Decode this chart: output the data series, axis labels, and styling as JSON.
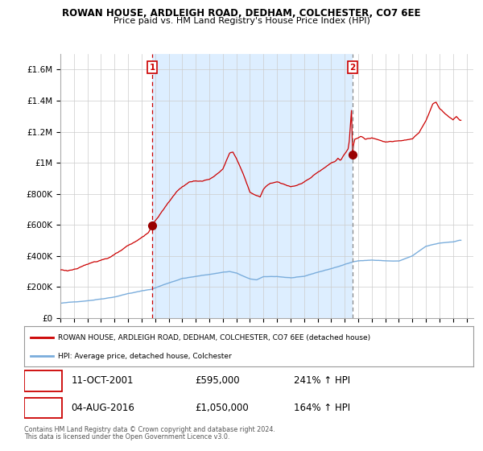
{
  "title1": "ROWAN HOUSE, ARDLEIGH ROAD, DEDHAM, COLCHESTER, CO7 6EE",
  "title2": "Price paid vs. HM Land Registry's House Price Index (HPI)",
  "ylim": [
    0,
    1700000
  ],
  "yticks": [
    0,
    200000,
    400000,
    600000,
    800000,
    1000000,
    1200000,
    1400000,
    1600000
  ],
  "ytick_labels": [
    "£0",
    "£200K",
    "£400K",
    "£600K",
    "£800K",
    "£1M",
    "£1.2M",
    "£1.4M",
    "£1.6M"
  ],
  "xlim_start": 1995.0,
  "xlim_end": 2025.5,
  "sale1_x": 2001.78,
  "sale1_y": 595000,
  "sale1_label": "1",
  "sale1_date": "11-OCT-2001",
  "sale1_price": "£595,000",
  "sale1_hpi": "241% ↑ HPI",
  "sale2_x": 2016.58,
  "sale2_y": 1050000,
  "sale2_label": "2",
  "sale2_date": "04-AUG-2016",
  "sale2_price": "£1,050,000",
  "sale2_hpi": "164% ↑ HPI",
  "line_color_house": "#cc0000",
  "line_color_hpi": "#7aaddc",
  "vline1_color": "#cc0000",
  "vline2_color": "#888888",
  "marker_color": "#990000",
  "shade_color": "#ddeeff",
  "legend_label_house": "ROWAN HOUSE, ARDLEIGH ROAD, DEDHAM, COLCHESTER, CO7 6EE (detached house)",
  "legend_label_hpi": "HPI: Average price, detached house, Colchester",
  "footer1": "Contains HM Land Registry data © Crown copyright and database right 2024.",
  "footer2": "This data is licensed under the Open Government Licence v3.0.",
  "background_color": "#ffffff",
  "plot_bg_color": "#ffffff",
  "grid_color": "#cccccc"
}
